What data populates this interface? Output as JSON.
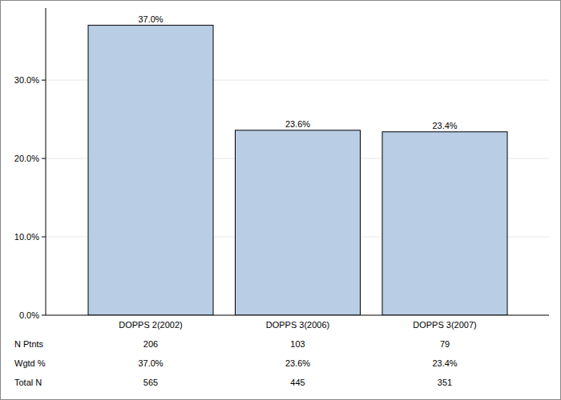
{
  "chart_data": {
    "type": "bar",
    "categories": [
      "DOPPS 2(2002)",
      "DOPPS 3(2006)",
      "DOPPS 3(2007)"
    ],
    "values": [
      37.0,
      23.6,
      23.4
    ],
    "value_labels": [
      "37.0%",
      "23.6%",
      "23.4%"
    ],
    "data_labels": true,
    "color": "#b9cde5",
    "ylim": [
      0,
      39.2
    ],
    "yticks": [
      {
        "value": 0,
        "label": "0.0%"
      },
      {
        "value": 10,
        "label": "10.0%"
      },
      {
        "value": 20,
        "label": "20.0%"
      },
      {
        "value": 30,
        "label": "30.0%"
      }
    ],
    "grid": true
  },
  "table": {
    "rows": [
      {
        "label": "N Ptnts",
        "cells": [
          "206",
          "103",
          "79"
        ]
      },
      {
        "label": "Wgtd %",
        "cells": [
          "37.0%",
          "23.6%",
          "23.4%"
        ]
      },
      {
        "label": "Total N",
        "cells": [
          "565",
          "445",
          "351"
        ]
      }
    ]
  }
}
